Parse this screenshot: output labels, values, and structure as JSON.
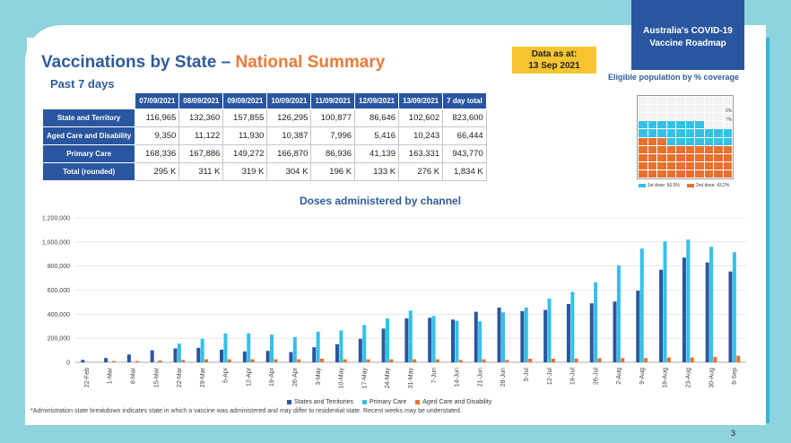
{
  "header": {
    "title_main": "Vaccinations by State – ",
    "title_accent": "National Summary",
    "data_as_at_label": "Data as at:",
    "data_as_at_date": "13 Sep 2021",
    "roadmap_line1": "Australia's COVID-19",
    "roadmap_line2": "Vaccine Roadmap"
  },
  "summary_table": {
    "section_label": "Past 7 days",
    "columns": [
      "07/09/2021",
      "08/09/2021",
      "09/09/2021",
      "10/09/2021",
      "11/09/2021",
      "12/09/2021",
      "13/09/2021",
      "7 day total"
    ],
    "rows": [
      {
        "label": "State and Territory",
        "values": [
          "116,965",
          "132,360",
          "157,855",
          "126,295",
          "100,877",
          "86,646",
          "102,602",
          "823,600"
        ]
      },
      {
        "label": "Aged Care and Disability",
        "values": [
          "9,350",
          "11,122",
          "11,930",
          "10,387",
          "7,996",
          "5,416",
          "10,243",
          "66,444"
        ]
      },
      {
        "label": "Primary Care",
        "values": [
          "168,336",
          "167,886",
          "149,272",
          "166,870",
          "86,936",
          "41,139",
          "163,331",
          "943,770"
        ]
      },
      {
        "label": "Total (rounded)",
        "values": [
          "295 K",
          "311 K",
          "319 K",
          "304 K",
          "196 K",
          "133 K",
          "276 K",
          "1,834 K"
        ]
      }
    ]
  },
  "coverage": {
    "title": "Eligible population by % coverage",
    "first_dose_pct": 66.5,
    "second_dose_pct": 43.2,
    "legend_first": "1st dose: 66.5%",
    "legend_second": "2nd dose: 43.2%",
    "label_top": "0%",
    "label_second": "7%",
    "colors": {
      "first": "#35c0e8",
      "second": "#e8712d"
    }
  },
  "chart_data": {
    "type": "bar",
    "title": "Doses administered by channel",
    "categories": [
      "22-Feb",
      "1-Mar",
      "8-Mar",
      "15-Mar",
      "22-Mar",
      "29-Mar",
      "5-Apr",
      "12-Apr",
      "19-Apr",
      "26-Apr",
      "3-May",
      "10-May",
      "17-May",
      "24-May",
      "31-May",
      "7-Jun",
      "14-Jun",
      "21-Jun",
      "28-Jun",
      "5-Jul",
      "12-Jul",
      "19-Jul",
      "26-Jul",
      "2-Aug",
      "9-Aug",
      "16-Aug",
      "23-Aug",
      "30-Aug",
      "6-Sep"
    ],
    "series": [
      {
        "name": "States and Territories",
        "color": "#2a56a0",
        "values": [
          20000,
          35000,
          65000,
          100000,
          115000,
          120000,
          105000,
          90000,
          95000,
          85000,
          125000,
          150000,
          195000,
          280000,
          365000,
          370000,
          355000,
          420000,
          455000,
          425000,
          435000,
          485000,
          490000,
          505000,
          595000,
          770000,
          870000,
          830000,
          755000
        ]
      },
      {
        "name": "Primary Care",
        "color": "#35c0e8",
        "values": [
          0,
          0,
          0,
          0,
          155000,
          195000,
          240000,
          240000,
          230000,
          210000,
          255000,
          265000,
          310000,
          365000,
          430000,
          385000,
          345000,
          340000,
          415000,
          455000,
          530000,
          585000,
          665000,
          805000,
          945000,
          1005000,
          1020000,
          960000,
          915000
        ]
      },
      {
        "name": "Aged Care and Disability",
        "color": "#e8712d",
        "values": [
          0,
          10000,
          10000,
          15000,
          20000,
          25000,
          25000,
          25000,
          25000,
          25000,
          30000,
          25000,
          25000,
          25000,
          25000,
          25000,
          20000,
          25000,
          20000,
          30000,
          30000,
          30000,
          35000,
          35000,
          35000,
          40000,
          40000,
          45000,
          55000
        ]
      }
    ],
    "y_ticks": [
      "0",
      "200,000",
      "400,000",
      "600,000",
      "800,000",
      "1,000,000",
      "1,200,000"
    ],
    "ylim": [
      0,
      1200000
    ],
    "grid": true,
    "legend": "bottom"
  },
  "footnote": "*Administration state breakdown indicates state in which a vaccine was administered and may differ to residential state. Recent weeks may be understated.",
  "page_number": "3"
}
